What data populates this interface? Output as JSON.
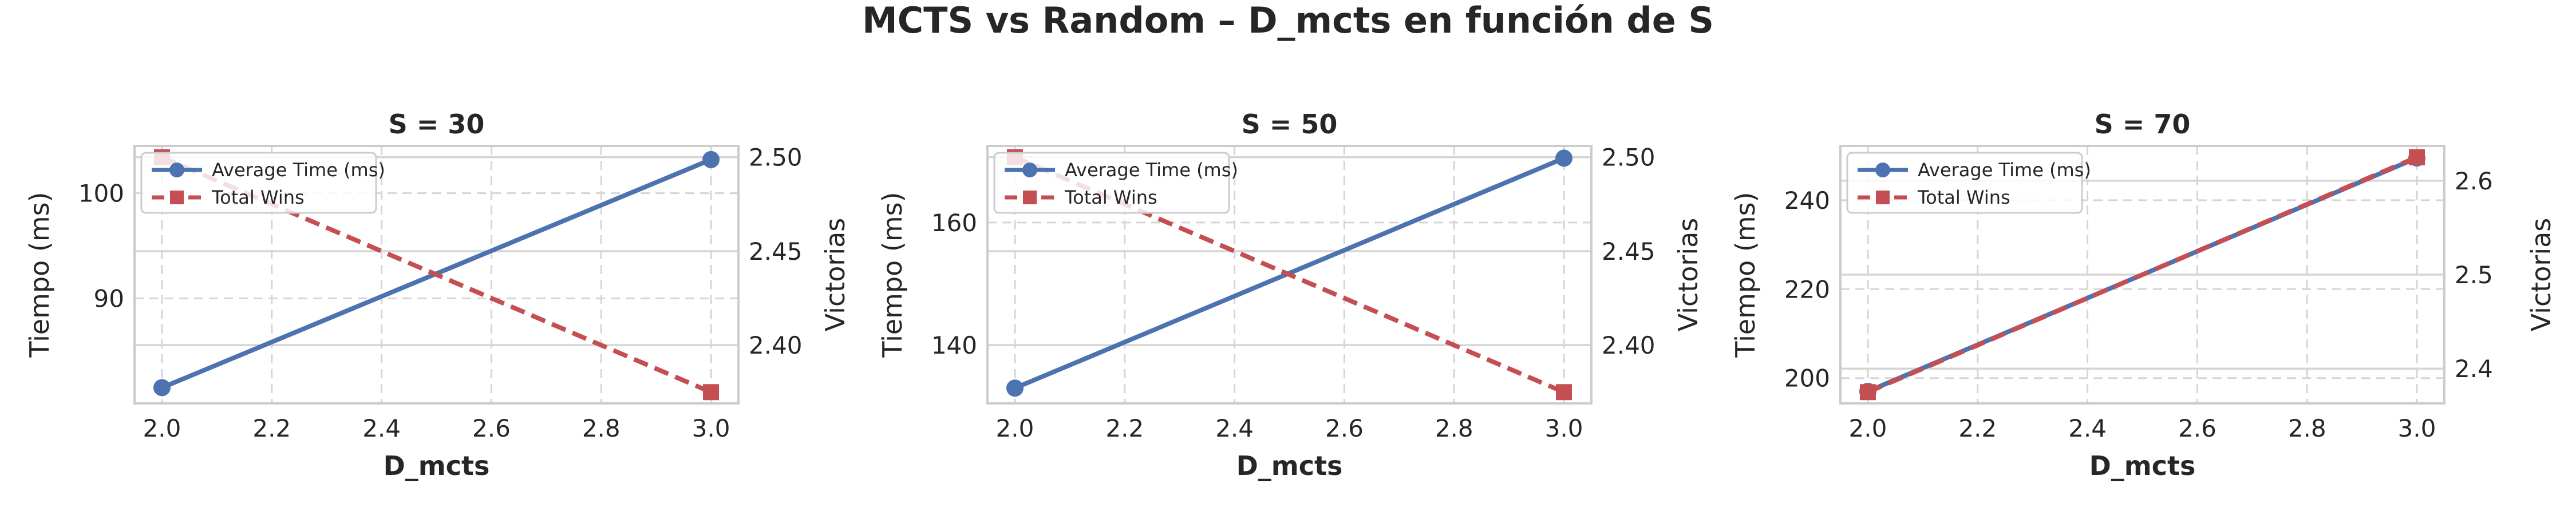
{
  "figure": {
    "title": "MCTS vs Random – D_mcts en función de S"
  },
  "colors": {
    "time": "#4c72b0",
    "wins": "#c44e52",
    "grid": "#d5d5d5",
    "frame": "#cccccc"
  },
  "chart_data": [
    {
      "type": "line",
      "title": "S = 30",
      "xlabel": "D_mcts",
      "ylabel_left": "Tiempo (ms)",
      "ylabel_right": "Victorias",
      "x": [
        2.0,
        3.0
      ],
      "xlim": [
        1.95,
        3.05
      ],
      "xticks": [
        2.0,
        2.2,
        2.4,
        2.6,
        2.8,
        3.0
      ],
      "xtick_labels": [
        "2.0",
        "2.2",
        "2.4",
        "2.6",
        "2.8",
        "3.0"
      ],
      "ylim_left": [
        80.0,
        104.5
      ],
      "yticks_left": [
        90,
        100
      ],
      "ytick_labels_left": [
        "90",
        "100"
      ],
      "ylim_right": [
        2.369,
        2.506
      ],
      "yticks_right": [
        2.4,
        2.45,
        2.5
      ],
      "ytick_labels_right": [
        "2.40",
        "2.45",
        "2.50"
      ],
      "series": [
        {
          "name": "Average Time (ms)",
          "axis": "left",
          "marker": "circle",
          "linestyle": "solid",
          "values": [
            81.5,
            103.2
          ]
        },
        {
          "name": "Total Wins",
          "axis": "right",
          "marker": "square",
          "linestyle": "dashed",
          "values": [
            2.5,
            2.375
          ]
        }
      ],
      "legend": "upper-left",
      "grid": true
    },
    {
      "type": "line",
      "title": "S = 50",
      "xlabel": "D_mcts",
      "ylabel_left": "Tiempo (ms)",
      "ylabel_right": "Victorias",
      "x": [
        2.0,
        3.0
      ],
      "xlim": [
        1.95,
        3.05
      ],
      "xticks": [
        2.0,
        2.2,
        2.4,
        2.6,
        2.8,
        3.0
      ],
      "xtick_labels": [
        "2.0",
        "2.2",
        "2.4",
        "2.6",
        "2.8",
        "3.0"
      ],
      "ylim_left": [
        130.5,
        172.5
      ],
      "yticks_left": [
        140,
        160
      ],
      "ytick_labels_left": [
        "140",
        "160"
      ],
      "ylim_right": [
        2.369,
        2.506
      ],
      "yticks_right": [
        2.4,
        2.45,
        2.5
      ],
      "ytick_labels_right": [
        "2.40",
        "2.45",
        "2.50"
      ],
      "series": [
        {
          "name": "Average Time (ms)",
          "axis": "left",
          "marker": "circle",
          "linestyle": "solid",
          "values": [
            133.0,
            170.5
          ]
        },
        {
          "name": "Total Wins",
          "axis": "right",
          "marker": "square",
          "linestyle": "dashed",
          "values": [
            2.5,
            2.375
          ]
        }
      ],
      "legend": "upper-left",
      "grid": true
    },
    {
      "type": "line",
      "title": "S = 70",
      "xlabel": "D_mcts",
      "ylabel_left": "Tiempo (ms)",
      "ylabel_right": "Victorias",
      "x": [
        2.0,
        3.0
      ],
      "xlim": [
        1.95,
        3.05
      ],
      "xticks": [
        2.0,
        2.2,
        2.4,
        2.6,
        2.8,
        3.0
      ],
      "xtick_labels": [
        "2.0",
        "2.2",
        "2.4",
        "2.6",
        "2.8",
        "3.0"
      ],
      "ylim_left": [
        194.3,
        252.2
      ],
      "yticks_left": [
        200,
        220,
        240
      ],
      "ytick_labels_left": [
        "200",
        "220",
        "240"
      ],
      "ylim_right": [
        2.363,
        2.637
      ],
      "yticks_right": [
        2.4,
        2.5,
        2.6
      ],
      "ytick_labels_right": [
        "2.4",
        "2.5",
        "2.6"
      ],
      "series": [
        {
          "name": "Average Time (ms)",
          "axis": "left",
          "marker": "circle",
          "linestyle": "solid",
          "values": [
            197.0,
            249.5
          ]
        },
        {
          "name": "Total Wins",
          "axis": "right",
          "marker": "square",
          "linestyle": "dashed",
          "values": [
            2.375,
            2.625
          ]
        }
      ],
      "legend": "upper-left",
      "grid": true
    }
  ]
}
